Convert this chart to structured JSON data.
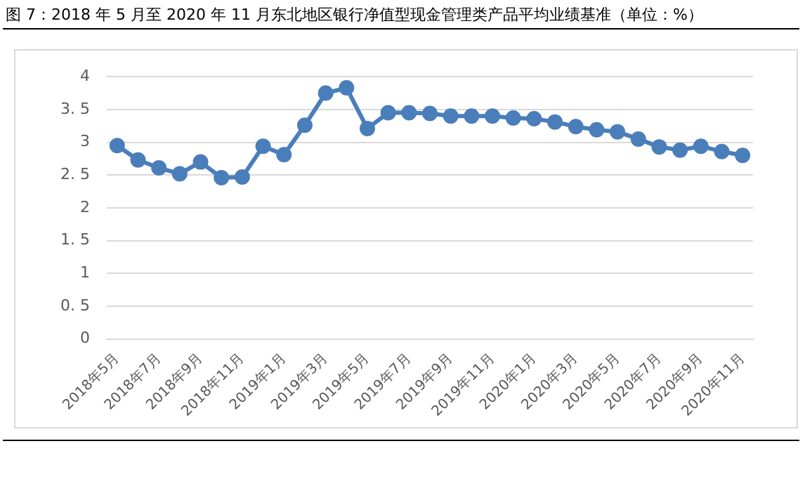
{
  "chart_data": {
    "type": "line",
    "title": "图 7：2018 年 5 月至 2020 年 11 月东北地区银行净值型现金管理类产品平均业绩基准（单位：%）",
    "categories": [
      "2018年5月",
      null,
      "2018年7月",
      null,
      "2018年9月",
      null,
      "2018年11月",
      null,
      "2019年1月",
      null,
      "2019年3月",
      null,
      "2019年5月",
      null,
      "2019年7月",
      null,
      "2019年9月",
      null,
      "2019年11月",
      null,
      "2020年1月",
      null,
      "2020年3月",
      null,
      "2020年5月",
      null,
      "2020年7月",
      null,
      "2020年9月",
      null,
      "2020年11月"
    ],
    "series": [
      {
        "color": "#4a7ebb",
        "values": [
          2.95,
          2.73,
          2.61,
          2.52,
          2.7,
          2.46,
          2.47,
          2.94,
          2.81,
          3.26,
          3.75,
          3.83,
          3.21,
          3.45,
          3.45,
          3.44,
          3.4,
          3.4,
          3.4,
          3.37,
          3.36,
          3.31,
          3.24,
          3.19,
          3.16,
          3.05,
          2.93,
          2.88,
          2.94,
          2.86,
          2.8
        ]
      }
    ],
    "ylim": [
      0,
      4
    ],
    "yticks": [
      0,
      {
        "value": 0.5,
        "label": "0. 5"
      },
      1,
      {
        "value": 1.5,
        "label": "1. 5"
      },
      2,
      {
        "value": 2.5,
        "label": "2. 5"
      },
      3,
      {
        "value": 3.5,
        "label": "3. 5"
      },
      4
    ],
    "grid": "y",
    "legend": false,
    "marker": "circle",
    "line_style": "solid"
  }
}
